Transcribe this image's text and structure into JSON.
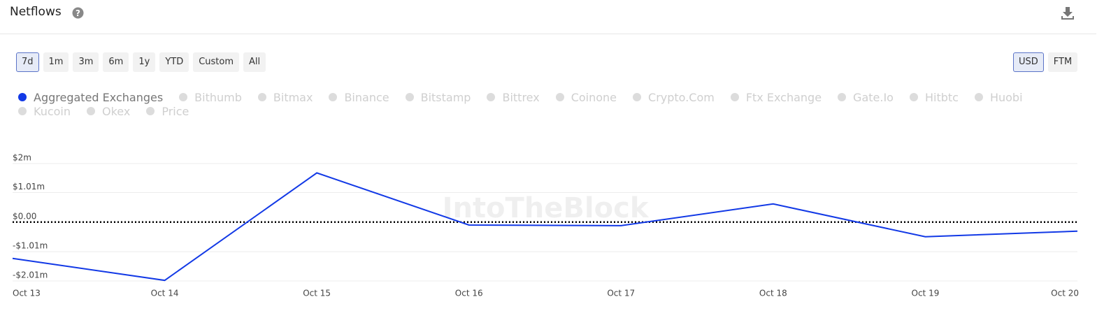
{
  "header": {
    "title": "Netflows"
  },
  "range_buttons": [
    "7d",
    "1m",
    "3m",
    "6m",
    "1y",
    "YTD",
    "Custom",
    "All"
  ],
  "currency_buttons": [
    "USD",
    "FTM"
  ],
  "inactive_legend": [
    "Bithumb",
    "Bitmax",
    "Binance",
    "Bitstamp",
    "Bittrex",
    "Coinone",
    "Crypto.Com",
    "Ftx Exchange",
    "Gate.Io",
    "Hitbtc",
    "Huobi",
    "Kucoin",
    "Okex",
    "Price"
  ],
  "watermark": "IntoTheBlock",
  "chart_data": {
    "type": "line",
    "x": [
      "Oct 13",
      "Oct 14",
      "Oct 15",
      "Oct 16",
      "Oct 17",
      "Oct 18",
      "Oct 19",
      "Oct 20"
    ],
    "series": [
      {
        "name": "Aggregated Exchanges",
        "color": "#1239e6",
        "values": [
          -1240000,
          -1990000,
          1680000,
          -100000,
          -120000,
          620000,
          -500000,
          -310000
        ]
      }
    ],
    "ylim": [
      -2010000,
      2000000
    ],
    "yticks": [
      {
        "value": -2010000,
        "label": "-$2.01m"
      },
      {
        "value": -1010000,
        "label": "-$1.01m"
      },
      {
        "value": 0,
        "label": "$0.00"
      },
      {
        "value": 1010000,
        "label": "$1.01m"
      },
      {
        "value": 2000000,
        "label": "$2m"
      }
    ],
    "grid": true
  }
}
